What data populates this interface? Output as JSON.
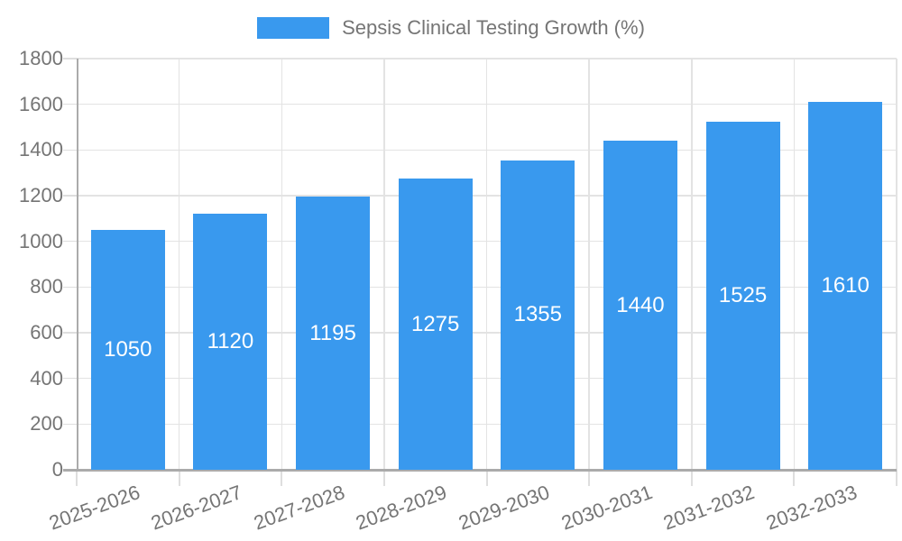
{
  "chart_data": {
    "type": "bar",
    "title": "Sepsis Clinical Testing Growth (%)",
    "categories": [
      "2025-2026",
      "2026-2027",
      "2027-2028",
      "2028-2029",
      "2029-2030",
      "2030-2031",
      "2031-2032",
      "2032-2033"
    ],
    "series": [
      {
        "name": "Sepsis Clinical Testing Growth (%)",
        "color": "#3999EE",
        "values": [
          1050,
          1120,
          1195,
          1275,
          1355,
          1440,
          1525,
          1610
        ]
      }
    ],
    "xlabel": "",
    "ylabel": "",
    "ylim": [
      0,
      1800
    ],
    "yticks": [
      0,
      200,
      400,
      600,
      800,
      1000,
      1200,
      1400,
      1600,
      1800
    ],
    "grid": "both",
    "legend_position": "top",
    "colors": {
      "bar": "#3999EE",
      "value_label": "#FFFFFF",
      "axis_text": "#757575",
      "gridline": "#E3E3E3",
      "tick": "#DEDEDE",
      "axis_line": "#ABABAB"
    }
  }
}
